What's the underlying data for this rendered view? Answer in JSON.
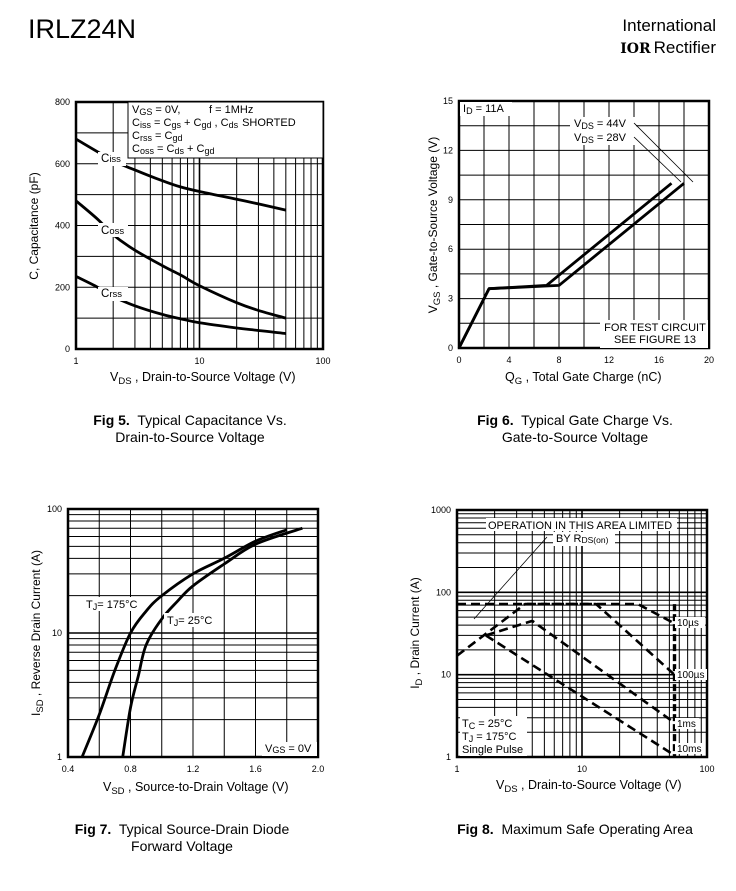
{
  "header": {
    "part_number": "IRLZ24N",
    "brand_line1": "International",
    "brand_logo": "IOR",
    "brand_line2": "Rectifier"
  },
  "captions": {
    "fig5_num": "Fig 5.",
    "fig5_text1": "Typical Capacitance Vs.",
    "fig5_text2": "Drain-to-Source Voltage",
    "fig6_num": "Fig 6.",
    "fig6_text1": "Typical Gate Charge Vs.",
    "fig6_text2": "Gate-to-Source Voltage",
    "fig7_num": "Fig 7.",
    "fig7_text1": "Typical Source-Drain Diode",
    "fig7_text2": "Forward Voltage",
    "fig8_num": "Fig 8.",
    "fig8_text1": "Maximum Safe Operating Area"
  },
  "chart_data": [
    {
      "type": "line",
      "title": "Typical Capacitance Vs. Drain-to-Source Voltage",
      "xlabel": "V_DS , Drain-to-Source Voltage (V)",
      "ylabel": "C, Capacitance (pF)",
      "xscale": "log",
      "xlim": [
        1,
        100
      ],
      "ylim": [
        0,
        800
      ],
      "xticks": [
        "1",
        "10",
        "100"
      ],
      "yticks": [
        "0",
        "200",
        "400",
        "600",
        "800"
      ],
      "grid": true,
      "legend_box": [
        "V_GS = 0V,      f = 1MHz",
        "C_iss = C_gs + C_gd , C_ds SHORTED",
        "C_rss = C_gd",
        "C_oss = C_ds + C_gd"
      ],
      "series": [
        {
          "name": "Ciss",
          "x": [
            1,
            2,
            3,
            5,
            7,
            10,
            20,
            30,
            50
          ],
          "y": [
            680,
            610,
            580,
            545,
            525,
            510,
            485,
            470,
            450
          ]
        },
        {
          "name": "Coss",
          "x": [
            1,
            1.5,
            2,
            3,
            5,
            7,
            10,
            20,
            30,
            50
          ],
          "y": [
            480,
            420,
            370,
            320,
            270,
            240,
            205,
            150,
            125,
            100
          ]
        },
        {
          "name": "Crss",
          "x": [
            1,
            1.5,
            2,
            3,
            5,
            7,
            10,
            20,
            30,
            50
          ],
          "y": [
            235,
            200,
            170,
            140,
            112,
            98,
            85,
            68,
            60,
            50
          ]
        }
      ]
    },
    {
      "type": "line",
      "title": "Typical Gate Charge Vs. Gate-to-Source Voltage",
      "xlabel": "Q_G , Total Gate Charge (nC)",
      "ylabel": "V_GS , Gate-to-Source Voltage (V)",
      "xlim": [
        0,
        20
      ],
      "ylim": [
        0,
        15
      ],
      "xticks": [
        "0",
        "4",
        "8",
        "12",
        "16",
        "20"
      ],
      "yticks": [
        "0",
        "3",
        "6",
        "9",
        "12",
        "15"
      ],
      "grid": true,
      "annotations": [
        "I_D = 11A",
        "FOR TEST CIRCUIT",
        "SEE FIGURE 13"
      ],
      "series": [
        {
          "name": "V_DS = 44V",
          "x": [
            0,
            2.4,
            8,
            18
          ],
          "y": [
            0,
            3.6,
            3.8,
            10
          ]
        },
        {
          "name": "V_DS = 28V",
          "x": [
            0,
            2.4,
            7,
            17
          ],
          "y": [
            0,
            3.6,
            3.8,
            10
          ]
        }
      ]
    },
    {
      "type": "line",
      "title": "Typical Source-Drain Diode Forward Voltage",
      "xlabel": "V_SD , Source-to-Drain Voltage (V)",
      "ylabel": "I_SD , Reverse Drain Current (A)",
      "yscale": "log",
      "xlim": [
        0.4,
        2.0
      ],
      "ylim": [
        1,
        100
      ],
      "xticks": [
        "0.4",
        "0.8",
        "1.2",
        "1.6",
        "2.0"
      ],
      "yticks": [
        "1",
        "10",
        "100"
      ],
      "grid": true,
      "annotations": [
        "V_GS = 0V"
      ],
      "series": [
        {
          "name": "T_J = 175°C",
          "x": [
            0.49,
            0.6,
            0.7,
            0.8,
            0.9,
            1.0,
            1.2,
            1.4,
            1.6,
            1.8
          ],
          "y": [
            1,
            2.2,
            5,
            10,
            15,
            20,
            30,
            40,
            55,
            68
          ]
        },
        {
          "name": "T_J = 25°C",
          "x": [
            0.75,
            0.8,
            0.85,
            0.9,
            1.0,
            1.1,
            1.2,
            1.4,
            1.6,
            1.9
          ],
          "y": [
            1,
            2.5,
            4.5,
            8,
            13,
            18,
            24,
            36,
            52,
            70
          ]
        }
      ]
    },
    {
      "type": "line",
      "title": "Maximum Safe Operating Area",
      "xlabel": "V_DS , Drain-to-Source Voltage (V)",
      "ylabel": "I_D , Drain Current (A)",
      "xscale": "log",
      "yscale": "log",
      "xlim": [
        1,
        100
      ],
      "ylim": [
        1,
        1000
      ],
      "xticks": [
        "1",
        "10",
        "100"
      ],
      "yticks": [
        "1",
        "10",
        "100",
        "1000"
      ],
      "grid": true,
      "annotations": [
        "OPERATION IN THIS AREA LIMITED",
        "BY R",
        "DS(on)",
        "T_C = 25°C",
        "T_J = 175°C",
        "Single Pulse"
      ],
      "series": [
        {
          "name": "10µs",
          "x": [
            1,
            28,
            55
          ],
          "y": [
            72,
            72,
            42
          ]
        },
        {
          "name": "100µs",
          "x": [
            1,
            3.5,
            13,
            55
          ],
          "y": [
            17,
            72,
            72,
            10
          ]
        },
        {
          "name": "1ms",
          "x": [
            1.7,
            4,
            55
          ],
          "y": [
            30,
            45,
            2.6
          ]
        },
        {
          "name": "10ms",
          "x": [
            1.7,
            55
          ],
          "y": [
            30,
            1.05
          ]
        },
        {
          "name": "V_DS limit",
          "x": [
            55,
            55
          ],
          "y": [
            72,
            1
          ]
        }
      ]
    }
  ],
  "labels": {
    "fig5_y_label": "C, Capacitance (pF)",
    "fig5_x_label_main": "V",
    "fig5_x_label_sub": "DS",
    "fig5_x_label_rest": " , Drain-to-Source Voltage (V)",
    "fig5_legend_l1a": "V",
    "fig5_legend_l1b": "GS",
    "fig5_legend_l1c": " = 0V,",
    "fig5_legend_l1d": "f = 1MHz",
    "fig5_ciss": "C",
    "fig5_ciss_sub": "iss",
    "fig5_coss": "C",
    "fig5_coss_sub": "oss",
    "fig5_crss": "C",
    "fig5_crss_sub": "rss",
    "fig5_eq_gs": "gs",
    "fig5_eq_gd": "gd",
    "fig5_eq_ds": "ds",
    "fig5_shorted": "SHORTED",
    "fig6_id": "I",
    "fig6_id_sub": "D",
    "fig6_id_val": " = 11A",
    "fig6_v44_sub": "DS",
    "fig6_v44_val": " = 44V",
    "fig6_v28_val": " = 28V",
    "fig6_test1": "FOR TEST CIRCUIT",
    "fig6_test2": "SEE FIGURE 13",
    "fig6_y_sub": "GS",
    "fig6_y_rest": " ,  Gate-to-Source Voltage (V)",
    "fig6_x_main": "Q",
    "fig6_x_sub": "G",
    "fig6_x_rest": " , Total Gate Charge (nC)",
    "fig7_t175": "T",
    "fig7_t_sub": "J",
    "fig7_t175_val": "= 175°C",
    "fig7_t25_val": "= 25°C",
    "fig7_vgs_sub": "GS",
    "fig7_vgs_val": " = 0V",
    "fig7_y_main": "I",
    "fig7_y_sub": "SD",
    "fig7_y_rest": " , Reverse Drain Current (A)",
    "fig7_x_sub": "SD",
    "fig7_x_rest": " , Source-to-Drain Voltage (V)",
    "fig8_op1": "OPERATION IN THIS AREA LIMITED",
    "fig8_op2": "BY R",
    "fig8_op2_sub": "DS(on)",
    "fig8_tc": "T",
    "fig8_tc_sub": "C",
    "fig8_tc_val": "  = 25°C",
    "fig8_tj_sub": "J",
    "fig8_tj_val": "  = 175°C",
    "fig8_single": "Single Pulse",
    "fig8_10us": "10µs",
    "fig8_100us": "100µs",
    "fig8_1ms": "1ms",
    "fig8_10ms": "10ms",
    "fig8_y_main": "I",
    "fig8_y_sub": "D",
    "fig8_y_rest": " , Drain Current (A)",
    "fig8_x_sub": "DS",
    "fig8_x_rest": " , Drain-to-Source Voltage (V)"
  }
}
